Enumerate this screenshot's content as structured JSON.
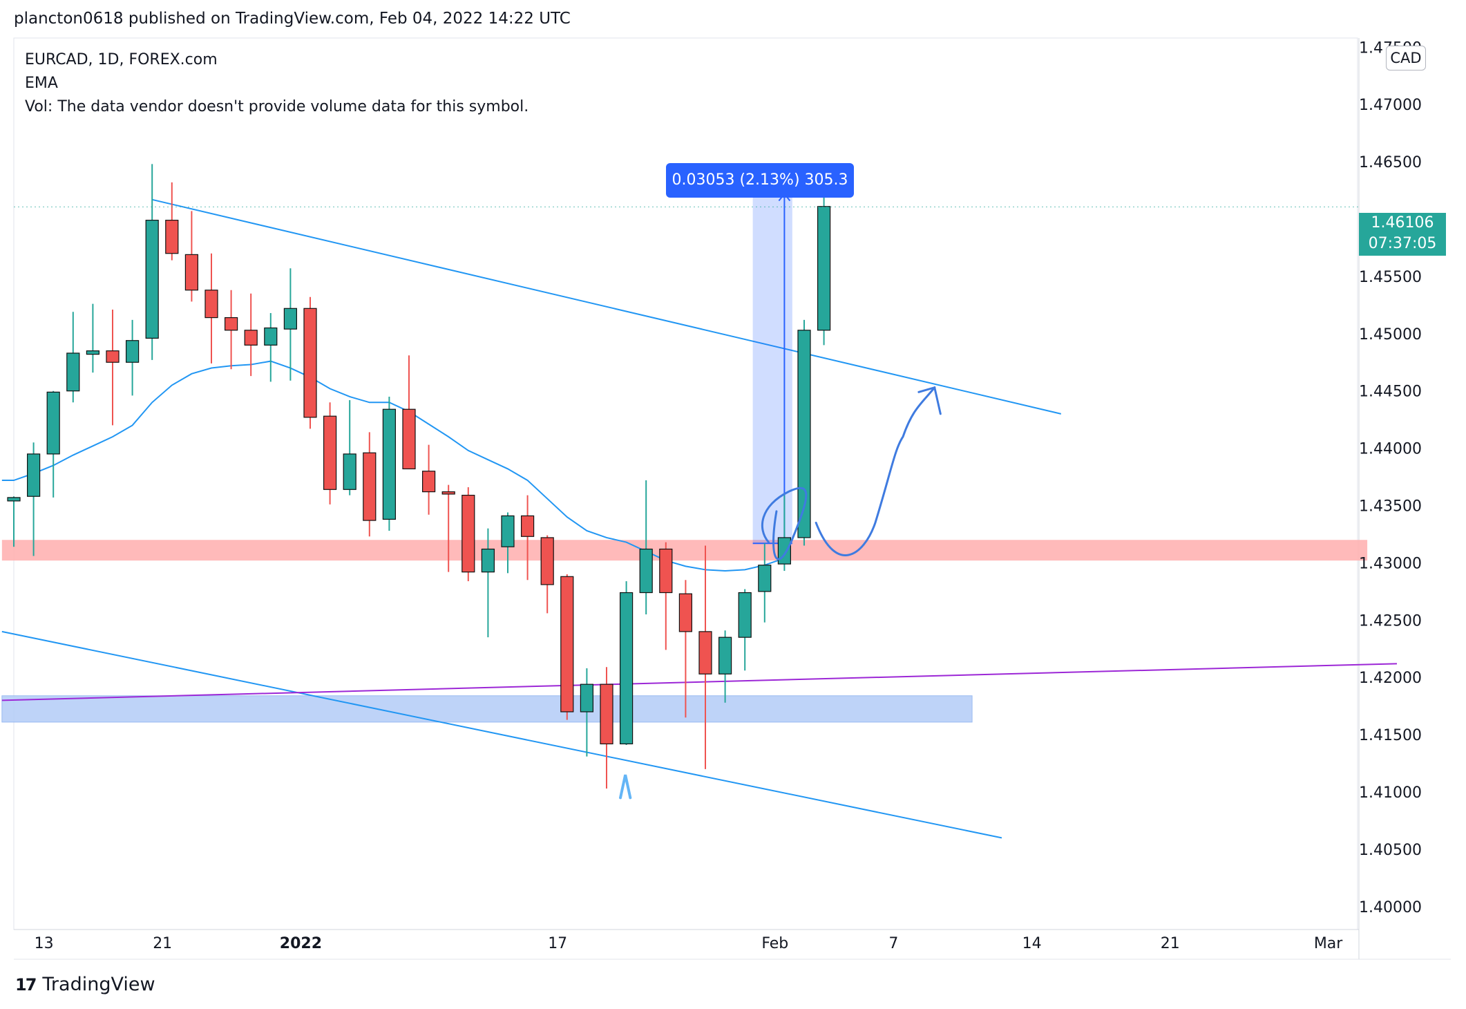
{
  "header": {
    "text": "plancton0618 published on TradingView.com, Feb 04, 2022 14:22 UTC"
  },
  "legend": {
    "symbol": "EURCAD, 1D, FOREX.com",
    "ema": "EMA",
    "vol": "Vol: The data vendor doesn't provide volume data for this symbol."
  },
  "currency": "CAD",
  "current_price": {
    "price": "1.46106",
    "countdown": "07:37:05"
  },
  "measure": {
    "label": "0.03053 (2.13%) 305.3"
  },
  "footer": {
    "brand": "TradingView",
    "logo": "17"
  },
  "colors": {
    "up": "#26a69a",
    "down": "#ef5350",
    "ema": "#2196f3",
    "trendline": "#2196f3",
    "support_zone": "#ffb3b3",
    "demand_zone": "#b7cff8",
    "purple_line": "#9c27d6",
    "drawing": "#3f7be0"
  },
  "chart_data": {
    "type": "candlestick",
    "title": "EURCAD, 1D, FOREX.com",
    "xlabel": "",
    "ylabel": "CAD",
    "ylim": [
      1.398,
      1.4758
    ],
    "y_ticks": [
      "1.40000",
      "1.40500",
      "1.41000",
      "1.41500",
      "1.42000",
      "1.42500",
      "1.43000",
      "1.43500",
      "1.44000",
      "1.44500",
      "1.45000",
      "1.45500",
      "1.46000",
      "1.46500",
      "1.47000",
      "1.47500"
    ],
    "x_ticks": [
      {
        "label": "13",
        "index": 1.0
      },
      {
        "label": "21",
        "index": 7.0
      },
      {
        "label": "2022",
        "index": 14.0,
        "bold": true
      },
      {
        "label": "17",
        "index": 27.0
      },
      {
        "label": "Feb",
        "index": 38.0
      },
      {
        "label": "7",
        "index": 44.0
      },
      {
        "label": "14",
        "index": 51.0
      },
      {
        "label": "21",
        "index": 58.0
      },
      {
        "label": "Mar",
        "index": 66.0
      }
    ],
    "candles": [
      {
        "o": 1.4354,
        "h": 1.4358,
        "l": 1.4314,
        "c": 1.4357
      },
      {
        "o": 1.4358,
        "h": 1.4405,
        "l": 1.4306,
        "c": 1.4395
      },
      {
        "o": 1.4395,
        "h": 1.445,
        "l": 1.4357,
        "c": 1.4449
      },
      {
        "o": 1.445,
        "h": 1.4519,
        "l": 1.444,
        "c": 1.4483
      },
      {
        "o": 1.4482,
        "h": 1.4526,
        "l": 1.4466,
        "c": 1.4485
      },
      {
        "o": 1.4485,
        "h": 1.4521,
        "l": 1.442,
        "c": 1.4475
      },
      {
        "o": 1.4475,
        "h": 1.4512,
        "l": 1.4446,
        "c": 1.4494
      },
      {
        "o": 1.4496,
        "h": 1.4648,
        "l": 1.4477,
        "c": 1.4599
      },
      {
        "o": 1.4599,
        "h": 1.4632,
        "l": 1.4564,
        "c": 1.457
      },
      {
        "o": 1.4569,
        "h": 1.4607,
        "l": 1.4528,
        "c": 1.4538
      },
      {
        "o": 1.4538,
        "h": 1.457,
        "l": 1.4474,
        "c": 1.4514
      },
      {
        "o": 1.4514,
        "h": 1.4538,
        "l": 1.4469,
        "c": 1.4503
      },
      {
        "o": 1.4503,
        "h": 1.4535,
        "l": 1.4463,
        "c": 1.449
      },
      {
        "o": 1.449,
        "h": 1.4518,
        "l": 1.4458,
        "c": 1.4505
      },
      {
        "o": 1.4504,
        "h": 1.4557,
        "l": 1.4459,
        "c": 1.4522
      },
      {
        "o": 1.4522,
        "h": 1.4532,
        "l": 1.4417,
        "c": 1.4427
      },
      {
        "o": 1.4428,
        "h": 1.444,
        "l": 1.4351,
        "c": 1.4364
      },
      {
        "o": 1.4364,
        "h": 1.4442,
        "l": 1.4359,
        "c": 1.4395
      },
      {
        "o": 1.4396,
        "h": 1.4414,
        "l": 1.4323,
        "c": 1.4337
      },
      {
        "o": 1.4338,
        "h": 1.4445,
        "l": 1.4328,
        "c": 1.4434
      },
      {
        "o": 1.4434,
        "h": 1.4481,
        "l": 1.4383,
        "c": 1.4382
      },
      {
        "o": 1.438,
        "h": 1.4403,
        "l": 1.4342,
        "c": 1.4362
      },
      {
        "o": 1.4362,
        "h": 1.4368,
        "l": 1.4292,
        "c": 1.436
      },
      {
        "o": 1.4359,
        "h": 1.4366,
        "l": 1.4284,
        "c": 1.4292
      },
      {
        "o": 1.4292,
        "h": 1.433,
        "l": 1.4235,
        "c": 1.4312
      },
      {
        "o": 1.4314,
        "h": 1.4344,
        "l": 1.4291,
        "c": 1.4341
      },
      {
        "o": 1.4341,
        "h": 1.4359,
        "l": 1.4285,
        "c": 1.4323
      },
      {
        "o": 1.4322,
        "h": 1.4324,
        "l": 1.4256,
        "c": 1.4281
      },
      {
        "o": 1.4288,
        "h": 1.429,
        "l": 1.4163,
        "c": 1.417
      },
      {
        "o": 1.417,
        "h": 1.4208,
        "l": 1.4131,
        "c": 1.4194
      },
      {
        "o": 1.4194,
        "h": 1.4209,
        "l": 1.4103,
        "c": 1.4142
      },
      {
        "o": 1.4142,
        "h": 1.4284,
        "l": 1.4141,
        "c": 1.4274
      },
      {
        "o": 1.4274,
        "h": 1.4372,
        "l": 1.4255,
        "c": 1.4312
      },
      {
        "o": 1.4312,
        "h": 1.4318,
        "l": 1.4224,
        "c": 1.4274
      },
      {
        "o": 1.4273,
        "h": 1.4285,
        "l": 1.4165,
        "c": 1.424
      },
      {
        "o": 1.424,
        "h": 1.4315,
        "l": 1.412,
        "c": 1.4203
      },
      {
        "o": 1.4203,
        "h": 1.4241,
        "l": 1.4178,
        "c": 1.4235
      },
      {
        "o": 1.4235,
        "h": 1.4277,
        "l": 1.4206,
        "c": 1.4274
      },
      {
        "o": 1.4275,
        "h": 1.4317,
        "l": 1.4248,
        "c": 1.4298
      },
      {
        "o": 1.4299,
        "h": 1.4359,
        "l": 1.4293,
        "c": 1.4322
      },
      {
        "o": 1.4322,
        "h": 1.4512,
        "l": 1.4315,
        "c": 1.4503
      },
      {
        "o": 1.4503,
        "h": 1.4635,
        "l": 1.449,
        "c": 1.4611
      }
    ],
    "ema": [
      1.4372,
      1.4378,
      1.4385,
      1.4394,
      1.4402,
      1.441,
      1.442,
      1.444,
      1.4455,
      1.4465,
      1.447,
      1.4472,
      1.4473,
      1.4476,
      1.447,
      1.4462,
      1.4452,
      1.4445,
      1.444,
      1.444,
      1.4432,
      1.4421,
      1.441,
      1.4398,
      1.439,
      1.4382,
      1.4372,
      1.4356,
      1.434,
      1.4328,
      1.4322,
      1.4318,
      1.431,
      1.4302,
      1.4297,
      1.4294,
      1.4293,
      1.4294,
      1.4298,
      1.4304,
      1.4325,
      1.435
    ],
    "ema_drawn_to_index": 39,
    "trendlines": [
      {
        "name": "upper-channel",
        "from": {
          "index": 7.0,
          "price": 1.4617
        },
        "to": {
          "index": 53.0,
          "price": 1.443
        }
      },
      {
        "name": "lower-channel",
        "from": {
          "index": -0.6,
          "price": 1.424
        },
        "to": {
          "index": 50.0,
          "price": 1.406
        }
      },
      {
        "name": "purple-line",
        "from": {
          "index": -0.6,
          "price": 1.418
        },
        "to": {
          "index": 70.0,
          "price": 1.4212
        }
      }
    ],
    "zones": [
      {
        "name": "support-zone",
        "from_index": -0.6,
        "to_index": 68.5,
        "top": 1.432,
        "bottom": 1.4302
      },
      {
        "name": "demand-zone",
        "from_index": -0.6,
        "to_index": 48.5,
        "top": 1.4184,
        "bottom": 1.4161
      }
    ],
    "measure": {
      "from_index": 37.4,
      "to_index": 39.4,
      "low": 1.4317,
      "high": 1.4622,
      "delta": 0.03053,
      "percent": 2.13,
      "pips": 305.3
    },
    "last_price": 1.46106
  }
}
